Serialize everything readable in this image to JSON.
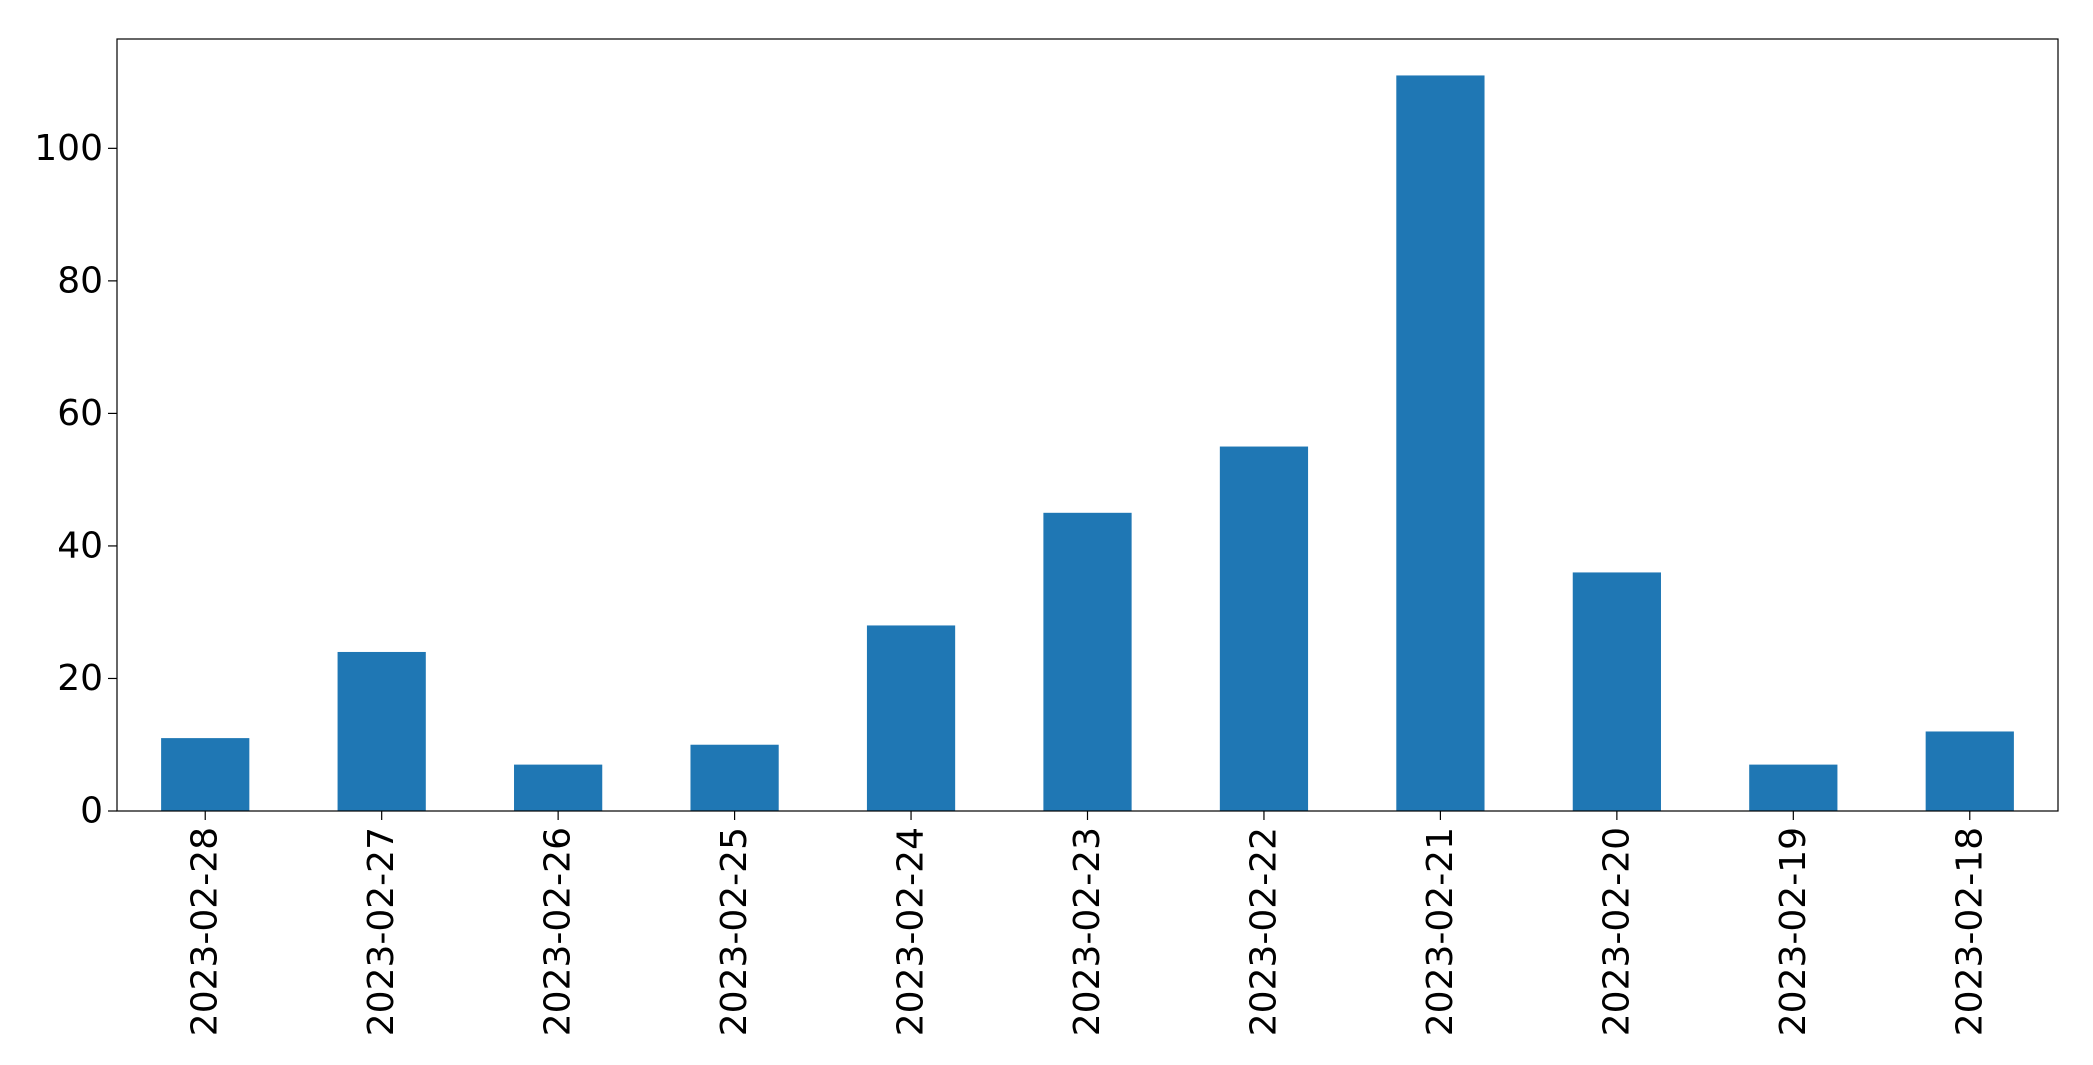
{
  "chart_data": {
    "type": "bar",
    "categories": [
      "2023-02-28",
      "2023-02-27",
      "2023-02-26",
      "2023-02-25",
      "2023-02-24",
      "2023-02-23",
      "2023-02-22",
      "2023-02-21",
      "2023-02-20",
      "2023-02-19",
      "2023-02-18"
    ],
    "values": [
      11,
      24,
      7,
      10,
      28,
      45,
      55,
      111,
      36,
      7,
      12
    ],
    "title": "",
    "xlabel": "",
    "ylabel": "",
    "ylim": [
      0,
      116.5
    ],
    "yticks": [
      0,
      20,
      40,
      60,
      80,
      100
    ],
    "grid": false,
    "legend": "none",
    "bar_color": "#1f77b4"
  }
}
